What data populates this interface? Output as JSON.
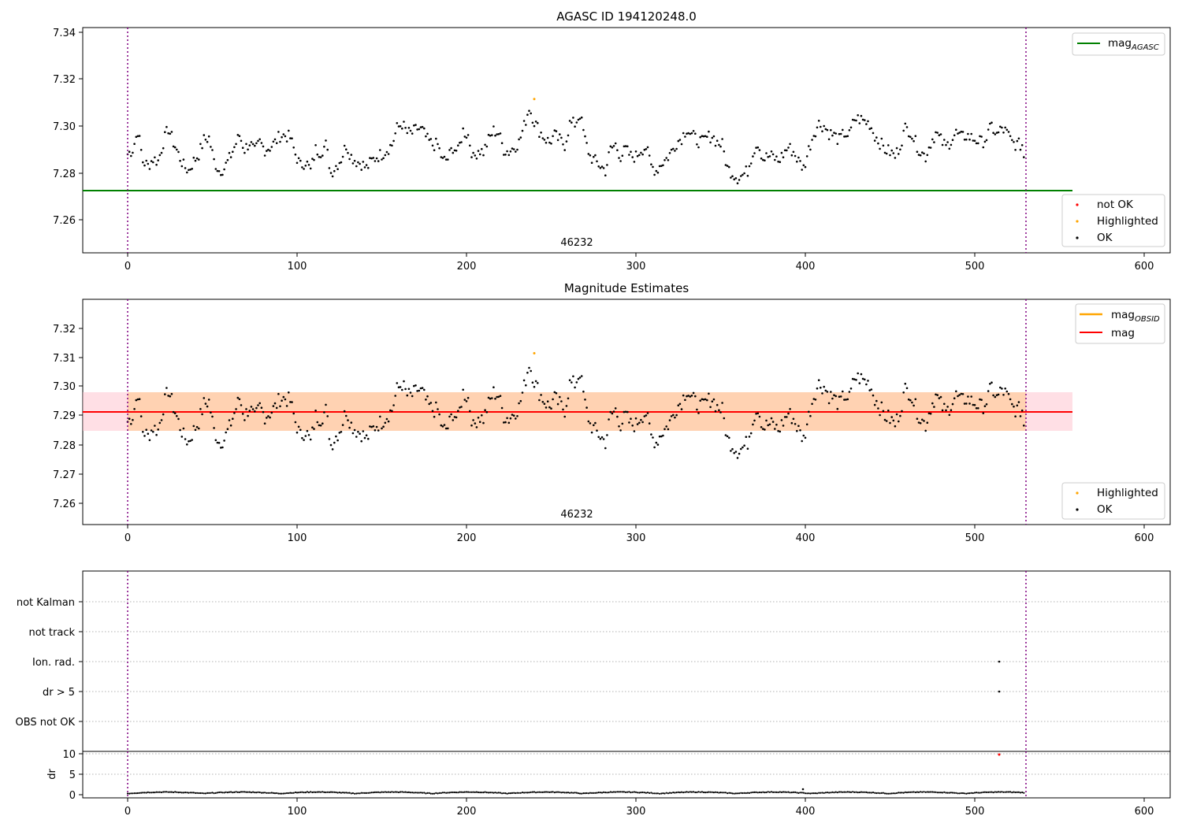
{
  "chart_data": [
    {
      "type": "scatter",
      "title": "AGASC ID 194120248.0",
      "xlim": [
        -27,
        615
      ],
      "ylim": [
        7.245,
        7.342
      ],
      "xticks": [
        "0",
        "100",
        "200",
        "300",
        "400",
        "500",
        "600"
      ],
      "yticks": [
        "7.26",
        "7.28",
        "7.30",
        "7.32",
        "7.34"
      ],
      "annotation": "46232",
      "vlines": [
        0,
        530
      ],
      "hline": {
        "label": "mag",
        "label_sub": "AGASC",
        "value": 7.2725,
        "x_range": [
          -27,
          557
        ],
        "color": "#008000"
      },
      "legend_points": [
        {
          "label": "not OK",
          "color": "#ff0000"
        },
        {
          "label": "Highlighted",
          "color": "#ffa500"
        },
        {
          "label": "OK",
          "color": "#000000"
        }
      ],
      "highlighted_points": [
        {
          "x": 240,
          "y": 7.3115
        }
      ],
      "ok_series_approx": [
        [
          0,
          7.288
        ],
        [
          3,
          7.29
        ],
        [
          6,
          7.298
        ],
        [
          9,
          7.285
        ],
        [
          12,
          7.283
        ],
        [
          15,
          7.286
        ],
        [
          18,
          7.285
        ],
        [
          21,
          7.293
        ],
        [
          24,
          7.299
        ],
        [
          27,
          7.293
        ],
        [
          30,
          7.288
        ],
        [
          33,
          7.283
        ],
        [
          36,
          7.281
        ],
        [
          39,
          7.285
        ],
        [
          42,
          7.288
        ],
        [
          45,
          7.294
        ],
        [
          48,
          7.295
        ],
        [
          51,
          7.285
        ],
        [
          54,
          7.281
        ],
        [
          57,
          7.282
        ],
        [
          60,
          7.286
        ],
        [
          63,
          7.291
        ],
        [
          66,
          7.296
        ],
        [
          69,
          7.29
        ],
        [
          72,
          7.293
        ],
        [
          75,
          7.289
        ],
        [
          78,
          7.293
        ],
        [
          81,
          7.29
        ],
        [
          84,
          7.291
        ],
        [
          87,
          7.293
        ],
        [
          90,
          7.296
        ],
        [
          93,
          7.296
        ],
        [
          96,
          7.295
        ],
        [
          99,
          7.288
        ],
        [
          102,
          7.283
        ],
        [
          105,
          7.285
        ],
        [
          108,
          7.281
        ],
        [
          111,
          7.29
        ],
        [
          114,
          7.289
        ],
        [
          117,
          7.292
        ],
        [
          120,
          7.28
        ],
        [
          123,
          7.283
        ],
        [
          126,
          7.286
        ],
        [
          129,
          7.292
        ],
        [
          132,
          7.287
        ],
        [
          135,
          7.285
        ],
        [
          138,
          7.284
        ],
        [
          141,
          7.282
        ],
        [
          144,
          7.285
        ],
        [
          147,
          7.287
        ],
        [
          150,
          7.288
        ],
        [
          153,
          7.29
        ],
        [
          156,
          7.292
        ],
        [
          159,
          7.299
        ],
        [
          162,
          7.301
        ],
        [
          165,
          7.297
        ],
        [
          168,
          7.297
        ],
        [
          171,
          7.299
        ],
        [
          174,
          7.298
        ],
        [
          177,
          7.294
        ],
        [
          180,
          7.292
        ],
        [
          183,
          7.292
        ],
        [
          186,
          7.285
        ],
        [
          189,
          7.286
        ],
        [
          192,
          7.291
        ],
        [
          195,
          7.289
        ],
        [
          198,
          7.298
        ],
        [
          201,
          7.296
        ],
        [
          204,
          7.286
        ],
        [
          207,
          7.29
        ],
        [
          210,
          7.289
        ],
        [
          213,
          7.294
        ],
        [
          216,
          7.298
        ],
        [
          219,
          7.297
        ],
        [
          222,
          7.29
        ],
        [
          225,
          7.289
        ],
        [
          228,
          7.291
        ],
        [
          231,
          7.293
        ],
        [
          234,
          7.3
        ],
        [
          237,
          7.308
        ],
        [
          240,
          7.302
        ],
        [
          243,
          7.298
        ],
        [
          246,
          7.295
        ],
        [
          249,
          7.293
        ],
        [
          252,
          7.296
        ],
        [
          255,
          7.294
        ],
        [
          258,
          7.292
        ],
        [
          261,
          7.301
        ],
        [
          264,
          7.301
        ],
        [
          267,
          7.305
        ],
        [
          270,
          7.294
        ],
        [
          273,
          7.287
        ],
        [
          276,
          7.285
        ],
        [
          279,
          7.283
        ],
        [
          282,
          7.281
        ],
        [
          285,
          7.29
        ],
        [
          288,
          7.292
        ],
        [
          291,
          7.287
        ],
        [
          294,
          7.29
        ],
        [
          297,
          7.287
        ],
        [
          300,
          7.287
        ],
        [
          303,
          7.29
        ],
        [
          306,
          7.291
        ],
        [
          309,
          7.283
        ],
        [
          312,
          7.281
        ],
        [
          315,
          7.284
        ],
        [
          318,
          7.286
        ],
        [
          321,
          7.289
        ],
        [
          324,
          7.293
        ],
        [
          327,
          7.295
        ],
        [
          330,
          7.299
        ],
        [
          333,
          7.296
        ],
        [
          336,
          7.294
        ],
        [
          339,
          7.293
        ],
        [
          342,
          7.295
        ],
        [
          345,
          7.296
        ],
        [
          348,
          7.293
        ],
        [
          351,
          7.292
        ],
        [
          354,
          7.282
        ],
        [
          357,
          7.28
        ],
        [
          360,
          7.278
        ],
        [
          363,
          7.279
        ],
        [
          366,
          7.281
        ],
        [
          369,
          7.289
        ],
        [
          372,
          7.293
        ],
        [
          375,
          7.286
        ],
        [
          378,
          7.287
        ],
        [
          381,
          7.287
        ],
        [
          384,
          7.285
        ],
        [
          387,
          7.288
        ],
        [
          390,
          7.291
        ],
        [
          393,
          7.289
        ],
        [
          396,
          7.285
        ],
        [
          399,
          7.282
        ],
        [
          402,
          7.29
        ],
        [
          405,
          7.297
        ],
        [
          408,
          7.301
        ],
        [
          411,
          7.3
        ],
        [
          414,
          7.297
        ],
        [
          417,
          7.296
        ],
        [
          420,
          7.294
        ],
        [
          423,
          7.297
        ],
        [
          426,
          7.296
        ],
        [
          429,
          7.303
        ],
        [
          432,
          7.303
        ],
        [
          435,
          7.302
        ],
        [
          438,
          7.301
        ],
        [
          441,
          7.296
        ],
        [
          444,
          7.293
        ],
        [
          447,
          7.29
        ],
        [
          450,
          7.289
        ],
        [
          453,
          7.287
        ],
        [
          456,
          7.292
        ],
        [
          459,
          7.299
        ],
        [
          462,
          7.298
        ],
        [
          465,
          7.293
        ],
        [
          468,
          7.289
        ],
        [
          471,
          7.287
        ],
        [
          474,
          7.293
        ],
        [
          477,
          7.297
        ],
        [
          480,
          7.294
        ],
        [
          483,
          7.291
        ],
        [
          486,
          7.294
        ],
        [
          489,
          7.297
        ],
        [
          492,
          7.295
        ],
        [
          495,
          7.296
        ],
        [
          498,
          7.295
        ],
        [
          501,
          7.294
        ],
        [
          504,
          7.293
        ],
        [
          507,
          7.295
        ],
        [
          510,
          7.3
        ],
        [
          513,
          7.296
        ],
        [
          516,
          7.299
        ],
        [
          519,
          7.297
        ],
        [
          522,
          7.293
        ],
        [
          525,
          7.292
        ],
        [
          528,
          7.292
        ],
        [
          529,
          7.287
        ]
      ]
    },
    {
      "type": "scatter",
      "title": "Magnitude Estimates",
      "xlim": [
        -27,
        615
      ],
      "ylim": [
        7.2525,
        7.3305
      ],
      "xticks": [
        "0",
        "100",
        "200",
        "300",
        "400",
        "500",
        "600"
      ],
      "yticks": [
        "7.26",
        "7.27",
        "7.28",
        "7.29",
        "7.30",
        "7.31",
        "7.32"
      ],
      "annotation": "46232",
      "vlines": [
        0,
        530
      ],
      "mag_line": {
        "label": "mag",
        "value": 7.2915,
        "x_range": [
          -27,
          557
        ],
        "color": "#ff0000"
      },
      "mag_band": {
        "lo": 7.2848,
        "hi": 7.298,
        "x_range": [
          -27,
          557
        ],
        "color": "#ffc0cb"
      },
      "obsid_line": {
        "label": "mag",
        "label_sub": "OBSID",
        "value": 7.2915,
        "x_range": [
          0,
          530
        ],
        "color": "#ffa500"
      },
      "obsid_band": {
        "lo": 7.2848,
        "hi": 7.298,
        "x_range": [
          0,
          530
        ],
        "color": "#ffa500"
      },
      "legend_lines": [
        {
          "label": "mag",
          "label_sub": "OBSID",
          "color": "#ffa500"
        },
        {
          "label": "mag",
          "color": "#ff0000"
        }
      ],
      "legend_points": [
        {
          "label": "Highlighted",
          "color": "#ffa500"
        },
        {
          "label": "OK",
          "color": "#000000"
        }
      ],
      "highlighted_points": [
        {
          "x": 240,
          "y": 7.3115
        }
      ],
      "ok_series": "same as top panel"
    },
    {
      "type": "scatter",
      "title": "",
      "xlim": [
        -27,
        615
      ],
      "xticks": [
        "0",
        "100",
        "200",
        "300",
        "400",
        "500",
        "600"
      ],
      "categories": [
        "not Kalman",
        "not track",
        "Ion. rad.",
        "dr > 5",
        "OBS not OK"
      ],
      "flag_points": [
        {
          "category": "Ion. rad.",
          "x": 514
        },
        {
          "category": "dr > 5",
          "x": 514
        }
      ],
      "dr": {
        "ylabel": "dr",
        "ylim": [
          -0.8,
          11
        ],
        "yticks": [
          "0",
          "5",
          "10"
        ],
        "baseline_approx": 0.3,
        "outliers": [
          {
            "x": 514,
            "y": 9.7,
            "color": "#ff0000"
          },
          {
            "x": 399,
            "y": 1.3,
            "color": "#000000"
          }
        ]
      },
      "vlines": [
        0,
        530
      ]
    }
  ]
}
